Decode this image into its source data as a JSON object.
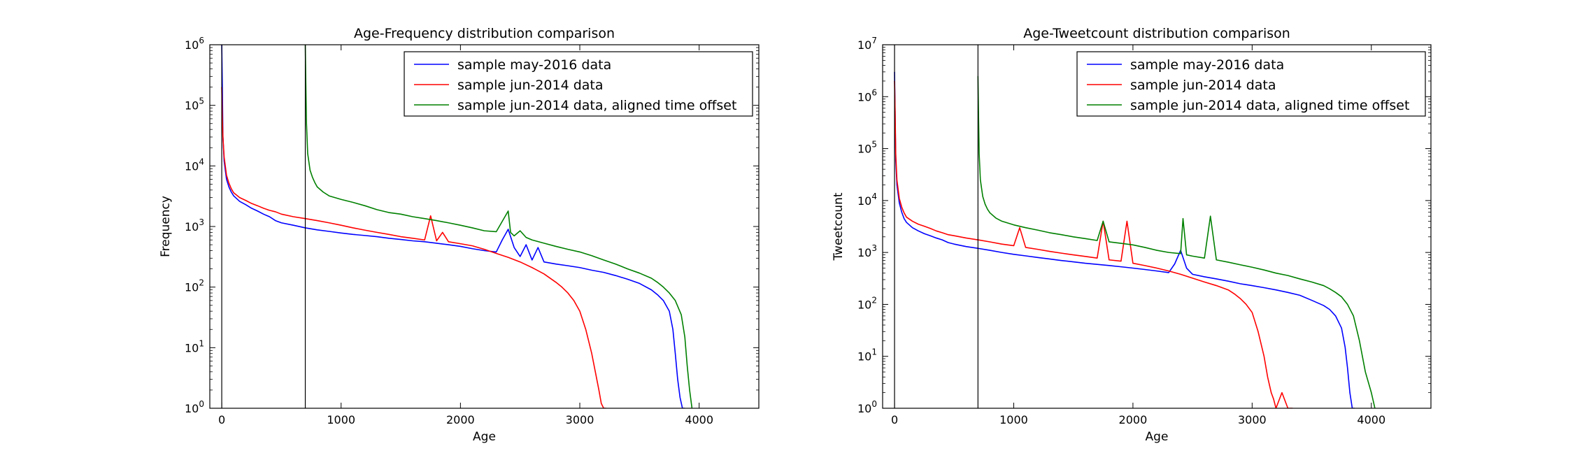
{
  "chart_data": [
    {
      "type": "line",
      "title": "Age-Frequency distribution comparison",
      "xlabel": "Age",
      "ylabel": "Frequency",
      "xlim": [
        -100,
        4500
      ],
      "ylim": [
        1,
        1000000
      ],
      "yscale": "log",
      "x_ticks": [
        0,
        1000,
        2000,
        3000,
        4000
      ],
      "x_tick_labels": [
        "0",
        "1000",
        "2000",
        "3000",
        "4000"
      ],
      "y_ticks": [
        1,
        10,
        100,
        1000,
        10000,
        100000,
        1000000
      ],
      "y_tick_labels": [
        "10^0",
        "10^1",
        "10^2",
        "10^3",
        "10^4",
        "10^5",
        "10^6"
      ],
      "vlines": [
        0,
        700
      ],
      "grid": false,
      "legend_position": "top-right",
      "series": [
        {
          "name": "sample may-2016 data",
          "color": "#0000ff",
          "x": [
            0,
            5,
            10,
            20,
            40,
            60,
            80,
            100,
            150,
            200,
            250,
            300,
            350,
            400,
            450,
            500,
            600,
            700,
            800,
            900,
            1000,
            1100,
            1200,
            1300,
            1400,
            1500,
            1600,
            1700,
            1800,
            1900,
            2000,
            2100,
            2200,
            2300,
            2350,
            2400,
            2450,
            2500,
            2550,
            2600,
            2650,
            2700,
            2800,
            2900,
            3000,
            3100,
            3200,
            3300,
            3400,
            3500,
            3600,
            3650,
            3700,
            3750,
            3780,
            3800,
            3820,
            3840,
            3860,
            3880
          ],
          "y": [
            1000000,
            200000,
            30000,
            12000,
            6000,
            4500,
            3700,
            3200,
            2600,
            2300,
            2000,
            1800,
            1600,
            1450,
            1250,
            1150,
            1050,
            950,
            880,
            830,
            780,
            740,
            710,
            680,
            640,
            610,
            580,
            560,
            530,
            500,
            470,
            430,
            400,
            380,
            600,
            900,
            450,
            320,
            500,
            280,
            450,
            260,
            240,
            225,
            210,
            190,
            175,
            155,
            135,
            115,
            90,
            75,
            60,
            40,
            20,
            8,
            3,
            1.5,
            1,
            1
          ]
        },
        {
          "name": "sample jun-2014 data",
          "color": "#ff0000",
          "x": [
            0,
            5,
            10,
            20,
            40,
            60,
            80,
            100,
            150,
            200,
            250,
            300,
            350,
            400,
            450,
            500,
            600,
            700,
            800,
            900,
            1000,
            1100,
            1200,
            1300,
            1400,
            1500,
            1600,
            1700,
            1750,
            1800,
            1850,
            1900,
            2000,
            2100,
            2200,
            2300,
            2400,
            2500,
            2600,
            2700,
            2800,
            2850,
            2900,
            2950,
            3000,
            3050,
            3100,
            3130,
            3160,
            3180,
            3200,
            3220
          ],
          "y": [
            200000,
            60000,
            30000,
            14000,
            7000,
            5200,
            4200,
            3600,
            3000,
            2700,
            2400,
            2200,
            2000,
            1850,
            1750,
            1600,
            1450,
            1350,
            1250,
            1150,
            1050,
            950,
            870,
            800,
            740,
            680,
            640,
            600,
            1500,
            580,
            800,
            560,
            520,
            480,
            420,
            360,
            310,
            260,
            210,
            165,
            120,
            100,
            80,
            60,
            40,
            20,
            8,
            4,
            2,
            1.2,
            1,
            1
          ]
        },
        {
          "name": "sample jun-2014 data, aligned time offset",
          "color": "#008000",
          "x": [
            700,
            705,
            710,
            720,
            740,
            760,
            780,
            800,
            850,
            900,
            1000,
            1100,
            1200,
            1300,
            1400,
            1500,
            1600,
            1700,
            1800,
            1900,
            2000,
            2100,
            2200,
            2300,
            2400,
            2420,
            2450,
            2500,
            2550,
            2600,
            2700,
            2800,
            2900,
            3000,
            3100,
            3200,
            3300,
            3400,
            3500,
            3600,
            3650,
            3700,
            3750,
            3800,
            3850,
            3880,
            3900,
            3920,
            3940
          ],
          "y": [
            1000000,
            200000,
            50000,
            16000,
            8500,
            6500,
            5300,
            4500,
            3700,
            3200,
            2800,
            2500,
            2200,
            1900,
            1700,
            1600,
            1450,
            1350,
            1250,
            1150,
            1050,
            950,
            850,
            820,
            1800,
            800,
            700,
            850,
            660,
            600,
            530,
            470,
            420,
            380,
            330,
            280,
            240,
            200,
            170,
            140,
            120,
            100,
            80,
            60,
            35,
            15,
            5,
            2,
            1
          ]
        }
      ]
    },
    {
      "type": "line",
      "title": "Age-Tweetcount distribution comparison",
      "xlabel": "Age",
      "ylabel": "Tweetcount",
      "xlim": [
        -100,
        4500
      ],
      "ylim": [
        1,
        10000000
      ],
      "yscale": "log",
      "x_ticks": [
        0,
        1000,
        2000,
        3000,
        4000
      ],
      "x_tick_labels": [
        "0",
        "1000",
        "2000",
        "3000",
        "4000"
      ],
      "y_ticks": [
        1,
        10,
        100,
        1000,
        10000,
        100000,
        1000000,
        10000000
      ],
      "y_tick_labels": [
        "10^0",
        "10^1",
        "10^2",
        "10^3",
        "10^4",
        "10^5",
        "10^6",
        "10^7"
      ],
      "vlines": [
        0,
        700
      ],
      "grid": false,
      "legend_position": "top-right",
      "series": [
        {
          "name": "sample may-2016 data",
          "color": "#0000ff",
          "x": [
            0,
            5,
            10,
            20,
            40,
            60,
            80,
            100,
            150,
            200,
            250,
            300,
            350,
            400,
            450,
            500,
            600,
            700,
            800,
            900,
            1000,
            1100,
            1200,
            1300,
            1400,
            1500,
            1600,
            1700,
            1800,
            1900,
            2000,
            2100,
            2200,
            2300,
            2350,
            2400,
            2450,
            2500,
            2600,
            2700,
            2800,
            2900,
            3000,
            3100,
            3200,
            3300,
            3400,
            3500,
            3600,
            3650,
            3700,
            3750,
            3780,
            3800,
            3820,
            3840,
            3860
          ],
          "y": [
            3000000,
            400000,
            60000,
            20000,
            9000,
            6000,
            4500,
            3800,
            3000,
            2600,
            2300,
            2100,
            1900,
            1750,
            1550,
            1450,
            1300,
            1200,
            1100,
            1000,
            920,
            860,
            800,
            750,
            700,
            660,
            620,
            590,
            560,
            530,
            500,
            470,
            440,
            410,
            600,
            1100,
            500,
            380,
            340,
            310,
            280,
            250,
            230,
            210,
            190,
            170,
            150,
            120,
            95,
            80,
            60,
            35,
            15,
            6,
            2,
            1,
            1
          ]
        },
        {
          "name": "sample jun-2014 data",
          "color": "#ff0000",
          "x": [
            0,
            5,
            10,
            20,
            40,
            60,
            80,
            100,
            150,
            200,
            250,
            300,
            350,
            400,
            450,
            500,
            600,
            700,
            800,
            900,
            1000,
            1050,
            1100,
            1200,
            1300,
            1400,
            1500,
            1600,
            1700,
            1750,
            1800,
            1900,
            1950,
            2000,
            2100,
            2200,
            2300,
            2400,
            2500,
            2600,
            2700,
            2800,
            2850,
            2900,
            2950,
            3000,
            3050,
            3100,
            3130,
            3160,
            3180,
            3200,
            3250,
            3300,
            3340
          ],
          "y": [
            2000000,
            500000,
            80000,
            25000,
            11000,
            7500,
            5800,
            4800,
            4000,
            3500,
            3200,
            2900,
            2600,
            2400,
            2200,
            2100,
            1900,
            1750,
            1600,
            1450,
            1350,
            3000,
            1250,
            1150,
            1050,
            970,
            900,
            840,
            780,
            4000,
            720,
            680,
            4000,
            620,
            560,
            500,
            440,
            380,
            320,
            270,
            230,
            190,
            160,
            130,
            100,
            70,
            30,
            10,
            4,
            2,
            1.5,
            1,
            2,
            1,
            1
          ]
        },
        {
          "name": "sample jun-2014 data, aligned time offset",
          "color": "#008000",
          "x": [
            700,
            705,
            710,
            720,
            740,
            760,
            780,
            800,
            850,
            900,
            1000,
            1100,
            1200,
            1300,
            1400,
            1500,
            1600,
            1700,
            1750,
            1800,
            1900,
            2000,
            2100,
            2200,
            2300,
            2400,
            2420,
            2450,
            2500,
            2600,
            2650,
            2700,
            2800,
            2900,
            3000,
            3100,
            3200,
            3300,
            3400,
            3500,
            3600,
            3650,
            3700,
            3750,
            3800,
            3850,
            3900,
            3950,
            4000,
            4030
          ],
          "y": [
            2500000,
            400000,
            80000,
            25000,
            12000,
            8500,
            6800,
            5800,
            4600,
            4000,
            3400,
            3000,
            2700,
            2400,
            2200,
            2000,
            1850,
            1700,
            4000,
            1600,
            1500,
            1400,
            1250,
            1100,
            1000,
            950,
            4500,
            900,
            850,
            780,
            5000,
            720,
            650,
            580,
            520,
            460,
            400,
            360,
            310,
            270,
            230,
            200,
            170,
            140,
            100,
            60,
            20,
            5,
            2,
            1
          ]
        }
      ]
    }
  ]
}
